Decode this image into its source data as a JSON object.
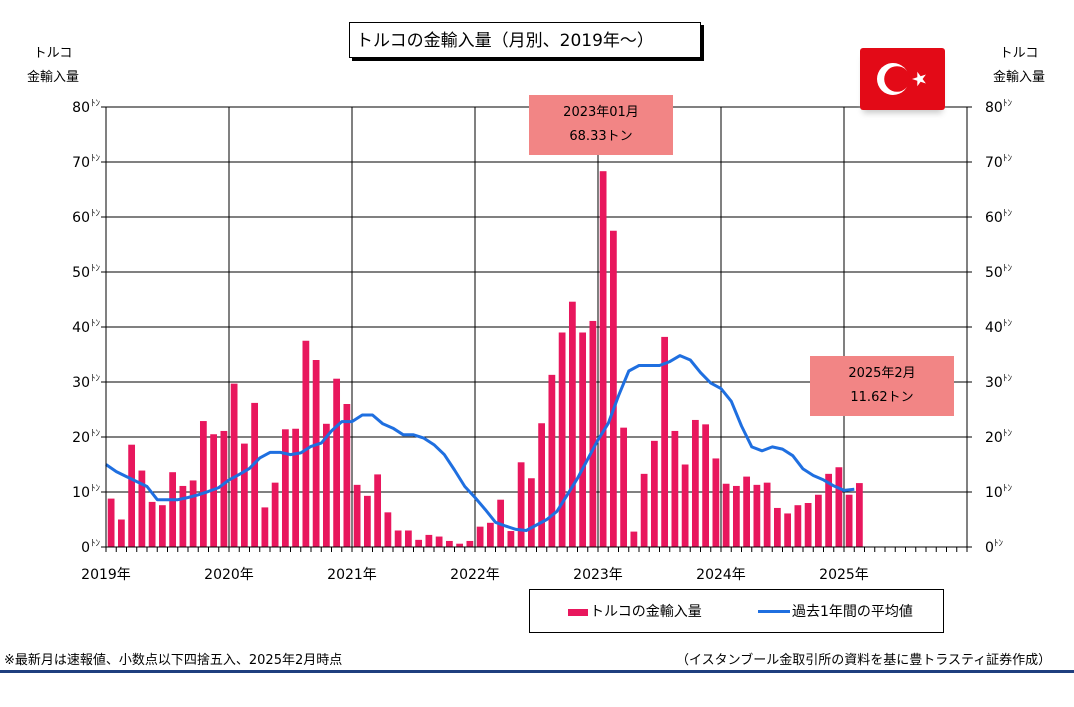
{
  "title": "トルコの金輸入量（月別、2019年～）",
  "y_axis_title_left": [
    "トルコ",
    "金輸入量"
  ],
  "y_axis_title_right": [
    "トルコ",
    "金輸入量"
  ],
  "callouts": [
    {
      "line1": "2023年01月",
      "line2": "68.33トン"
    },
    {
      "line1": "2025年2月",
      "line2": "11.62トン"
    }
  ],
  "legend": {
    "bar": "トルコの金輸入量",
    "line": "過去1年間の平均値"
  },
  "footnote": "※最新月は速報値、小数点以下四捨五入、2025年2月時点",
  "source": "（イスタンブール金取引所の資料を基に豊トラスティ証券作成）",
  "colors": {
    "bar": "#e8175d",
    "line": "#1f6fe0",
    "callout": "#f28585",
    "flag": "#e30a17"
  },
  "icon": "turkey-flag-icon",
  "chart_data": {
    "type": "bar",
    "ylim": [
      0,
      80
    ],
    "y_ticks": [
      0,
      10,
      20,
      30,
      40,
      50,
      60,
      70,
      80
    ],
    "y_tick_unit": "ﾄﾝ",
    "x_labels": [
      "2019年",
      "2020年",
      "2021年",
      "2022年",
      "2023年",
      "2024年",
      "2025年"
    ],
    "x_range_months": 84,
    "grid": true,
    "legend_position": "bottom-right",
    "series": [
      {
        "name": "トルコの金輸入量",
        "type": "bar",
        "start": "2019-01",
        "values": [
          8.8,
          5.0,
          18.6,
          13.9,
          8.2,
          7.6,
          13.6,
          11.1,
          12.1,
          22.9,
          20.5,
          21.1,
          29.7,
          18.8,
          26.2,
          7.2,
          11.7,
          21.4,
          21.5,
          37.5,
          34.0,
          22.4,
          30.6,
          26.0,
          11.3,
          9.3,
          13.2,
          6.3,
          3.0,
          3.0,
          1.3,
          2.2,
          1.9,
          1.1,
          0.6,
          1.1,
          3.7,
          4.4,
          8.6,
          2.9,
          15.4,
          12.5,
          22.5,
          31.3,
          39.0,
          44.6,
          39.0,
          41.1,
          68.33,
          57.5,
          21.7,
          2.8,
          13.3,
          19.3,
          38.2,
          21.1,
          15.0,
          23.1,
          22.3,
          16.1,
          11.5,
          11.1,
          12.8,
          11.3,
          11.7,
          7.1,
          6.1,
          7.6,
          8.0,
          9.5,
          13.3,
          14.5,
          9.5,
          11.62
        ]
      },
      {
        "name": "過去1年間の平均値",
        "type": "line",
        "start": "2019-01",
        "values": [
          15.0,
          13.7,
          12.8,
          11.9,
          11.0,
          8.6,
          8.6,
          8.6,
          9.0,
          9.5,
          10.1,
          10.8,
          12.2,
          13.2,
          14.3,
          16.2,
          17.2,
          17.2,
          16.8,
          17.1,
          18.3,
          18.9,
          21.1,
          22.8,
          22.8,
          24.0,
          24.0,
          22.4,
          21.6,
          20.4,
          20.4,
          19.8,
          18.6,
          16.8,
          14.0,
          11.0,
          9.0,
          6.8,
          4.5,
          3.8,
          3.2,
          3.0,
          4.0,
          5.0,
          6.5,
          9.5,
          12.5,
          16.0,
          19.5,
          22.5,
          27.5,
          32.0,
          33.0,
          33.0,
          33.0,
          33.7,
          34.8,
          34.0,
          31.7,
          29.8,
          28.8,
          26.5,
          22.0,
          18.2,
          17.5,
          18.2,
          17.8,
          16.6,
          14.2,
          13.0,
          12.2,
          11.1,
          10.3,
          10.5
        ]
      }
    ]
  }
}
